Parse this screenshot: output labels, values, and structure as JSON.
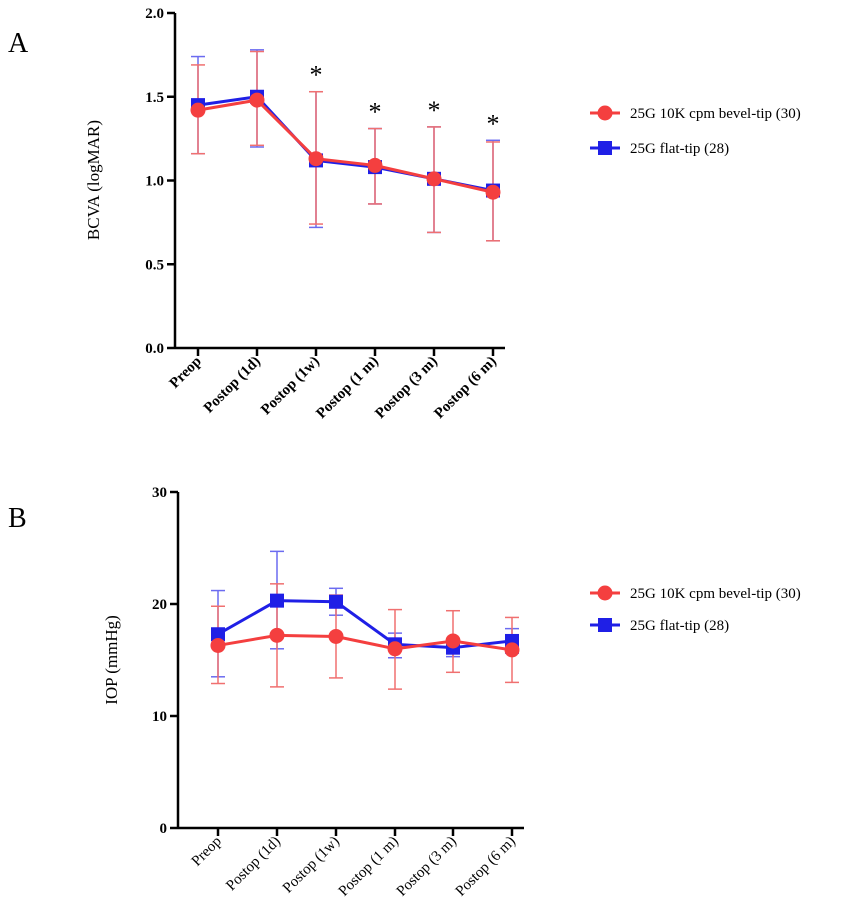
{
  "colors": {
    "red": "#f43f3f",
    "red_err": "#f07070",
    "blue": "#1f1fe6",
    "blue_err": "#6b6bf0"
  },
  "chart_data": [
    {
      "panel_label": "A",
      "type": "line",
      "title": "",
      "ylabel": "BCVA (logMAR)",
      "xlabel": "",
      "ylim": [
        0,
        2.0
      ],
      "yticks": [
        "0.0",
        "0.5",
        "1.0",
        "1.5",
        "2.0"
      ],
      "ytick_values": [
        0,
        0.5,
        1.0,
        1.5,
        2.0
      ],
      "categories": [
        "Preop",
        "Postop (1d)",
        "Postop (1w)",
        "Postop (1 m)",
        "Postop (3 m)",
        "Postop (6 m)"
      ],
      "bold_ticks": true,
      "legend_position": "right",
      "series": [
        {
          "name": "25G 10K cpm bevel-tip (30)",
          "marker": "circle",
          "color": "red",
          "values": [
            1.42,
            1.48,
            1.13,
            1.09,
            1.01,
            0.93
          ],
          "err_upper": [
            1.69,
            1.77,
            1.53,
            1.31,
            1.32,
            1.23
          ],
          "err_lower": [
            1.16,
            1.21,
            0.74,
            0.86,
            0.69,
            0.64
          ]
        },
        {
          "name": "25G flat-tip (28)",
          "marker": "square",
          "color": "blue",
          "values": [
            1.45,
            1.5,
            1.12,
            1.08,
            1.01,
            0.94
          ],
          "err_upper": [
            1.74,
            1.78,
            1.53,
            1.31,
            1.32,
            1.24
          ],
          "err_lower": [
            1.16,
            1.2,
            0.72,
            0.86,
            0.69,
            0.64
          ]
        }
      ],
      "annotations": [
        {
          "category": "Postop (1w)",
          "text": "*"
        },
        {
          "category": "Postop (1 m)",
          "text": "*"
        },
        {
          "category": "Postop (3 m)",
          "text": "*"
        },
        {
          "category": "Postop (6 m)",
          "text": "*"
        }
      ]
    },
    {
      "panel_label": "B",
      "type": "line",
      "title": "",
      "ylabel": "IOP (mmHg)",
      "xlabel": "",
      "ylim": [
        0,
        30
      ],
      "yticks": [
        "0",
        "10",
        "20",
        "30"
      ],
      "ytick_values": [
        0,
        10,
        20,
        30
      ],
      "categories": [
        "Preop",
        "Postop (1d)",
        "Postop (1w)",
        "Postop (1 m)",
        "Postop (3 m)",
        "Postop (6 m)"
      ],
      "bold_ticks": false,
      "legend_position": "right",
      "series": [
        {
          "name": "25G 10K cpm bevel-tip (30)",
          "marker": "circle",
          "color": "red",
          "values": [
            16.3,
            17.2,
            17.1,
            16.0,
            16.7,
            15.9
          ],
          "err_upper": [
            19.8,
            21.8,
            20.8,
            19.5,
            19.4,
            18.8
          ],
          "err_lower": [
            12.9,
            12.6,
            13.4,
            12.4,
            13.9,
            13.0
          ]
        },
        {
          "name": "25G flat-tip (28)",
          "marker": "square",
          "color": "blue",
          "values": [
            17.3,
            20.3,
            20.2,
            16.4,
            16.1,
            16.7
          ],
          "err_upper": [
            21.2,
            24.7,
            21.4,
            17.4,
            16.9,
            17.8
          ],
          "err_lower": [
            13.5,
            16.0,
            19.0,
            15.2,
            15.3,
            15.6
          ]
        }
      ],
      "annotations": []
    }
  ]
}
